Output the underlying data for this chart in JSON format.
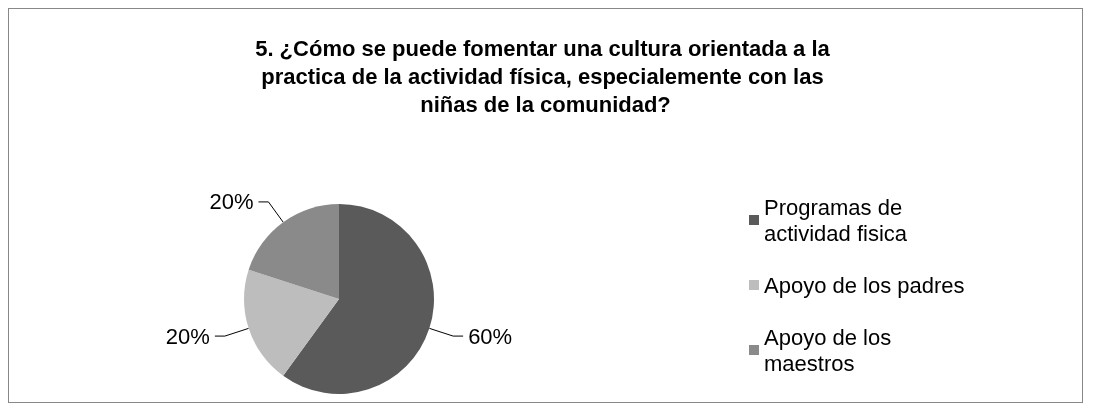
{
  "chart_data": {
    "type": "pie",
    "title": "5. ¿Cómo se puede fomentar una cultura orientada a la practica de la actividad física, especialemente con las niñas de la comunidad?",
    "categories": [
      "Programas de actividad fisica",
      "Apoyo de los padres",
      "Apoyo de los maestros"
    ],
    "values": [
      60,
      20,
      20
    ],
    "colors": [
      "#5a5a5a",
      "#bdbdbd",
      "#8a8a8a"
    ],
    "value_labels": [
      "60%",
      "20%",
      "20%"
    ],
    "legend": "right"
  }
}
